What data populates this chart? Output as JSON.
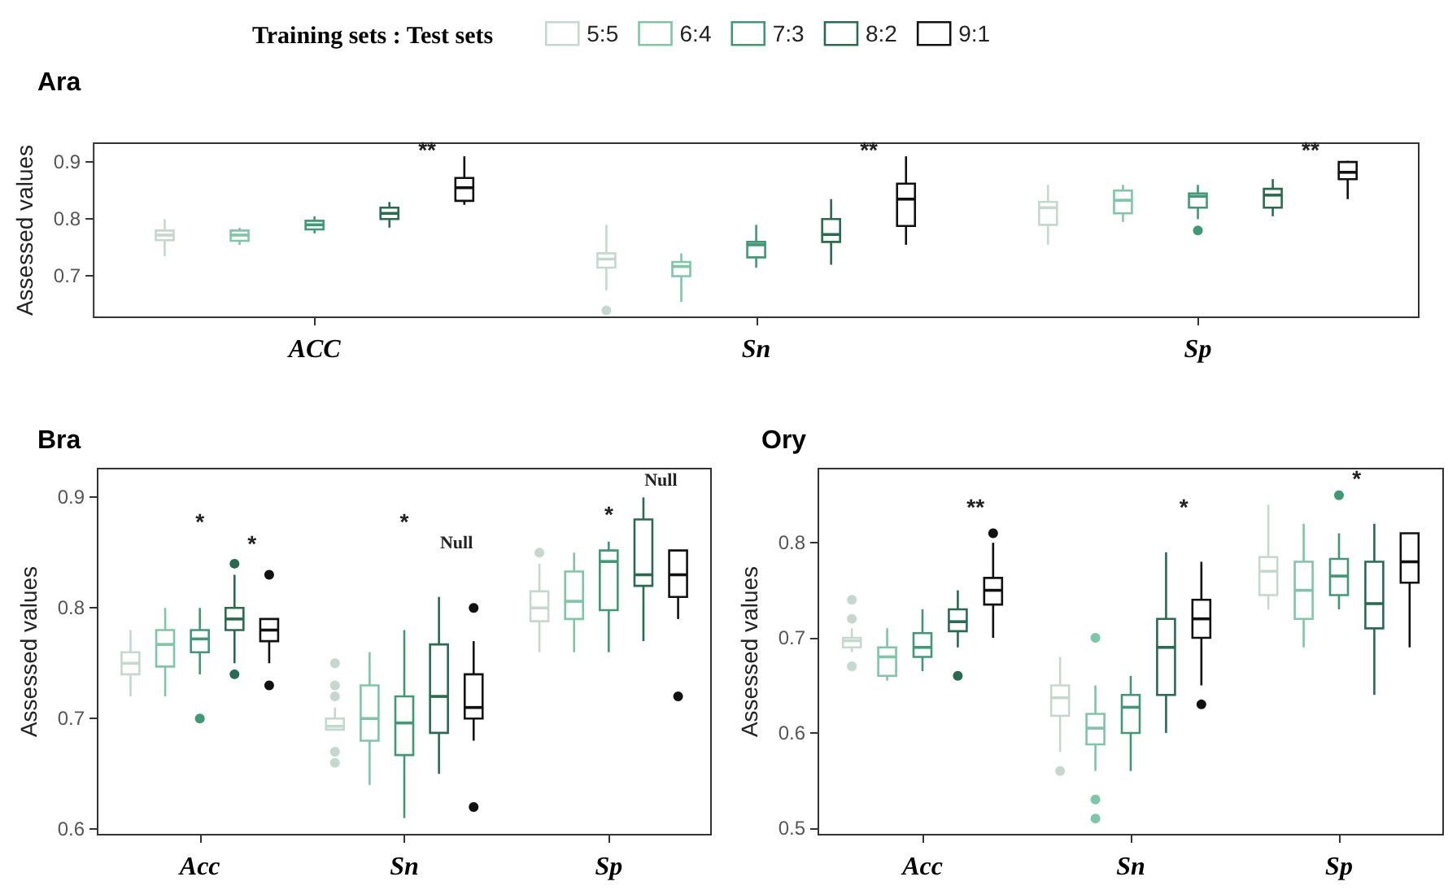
{
  "chart_data": [
    {
      "type": "box",
      "title": "Ara",
      "ylabel": "Assessed values",
      "legend_title": "Training sets : Test sets",
      "legend": "top",
      "categories": [
        "ACC",
        "Sn",
        "Sp"
      ],
      "ylim": [
        0.628,
        0.933
      ],
      "yticks": [
        0.7,
        0.8,
        0.9
      ],
      "annotations": [
        "**",
        "**",
        "**"
      ],
      "series": [
        {
          "name": "5:5",
          "color": "#c3d9cd",
          "boxes": [
            {
              "low": 0.735,
              "q1": 0.763,
              "median": 0.772,
              "q3": 0.78,
              "high": 0.8
            },
            {
              "low": 0.675,
              "q1": 0.715,
              "median": 0.73,
              "q3": 0.74,
              "high": 0.79,
              "outliers": [
                0.64
              ]
            },
            {
              "low": 0.755,
              "q1": 0.79,
              "median": 0.82,
              "q3": 0.83,
              "high": 0.86
            }
          ]
        },
        {
          "name": "6:4",
          "color": "#7cc7a5",
          "boxes": [
            {
              "low": 0.755,
              "q1": 0.762,
              "median": 0.772,
              "q3": 0.78,
              "high": 0.785
            },
            {
              "low": 0.655,
              "q1": 0.7,
              "median": 0.717,
              "q3": 0.725,
              "high": 0.74
            },
            {
              "low": 0.795,
              "q1": 0.81,
              "median": 0.833,
              "q3": 0.85,
              "high": 0.86
            }
          ]
        },
        {
          "name": "7:3",
          "color": "#3d9a74",
          "boxes": [
            {
              "low": 0.775,
              "q1": 0.782,
              "median": 0.79,
              "q3": 0.797,
              "high": 0.805
            },
            {
              "low": 0.715,
              "q1": 0.733,
              "median": 0.755,
              "q3": 0.76,
              "high": 0.79
            },
            {
              "low": 0.8,
              "q1": 0.82,
              "median": 0.84,
              "q3": 0.845,
              "high": 0.86,
              "outliers": [
                0.78
              ]
            }
          ]
        },
        {
          "name": "8:2",
          "color": "#276b51",
          "boxes": [
            {
              "low": 0.785,
              "q1": 0.8,
              "median": 0.81,
              "q3": 0.82,
              "high": 0.83
            },
            {
              "low": 0.72,
              "q1": 0.76,
              "median": 0.773,
              "q3": 0.8,
              "high": 0.835
            },
            {
              "low": 0.805,
              "q1": 0.82,
              "median": 0.842,
              "q3": 0.853,
              "high": 0.87
            }
          ]
        },
        {
          "name": "9:1",
          "color": "#111111",
          "boxes": [
            {
              "low": 0.825,
              "q1": 0.832,
              "median": 0.855,
              "q3": 0.872,
              "high": 0.91
            },
            {
              "low": 0.755,
              "q1": 0.788,
              "median": 0.835,
              "q3": 0.862,
              "high": 0.91
            },
            {
              "low": 0.835,
              "q1": 0.87,
              "median": 0.882,
              "q3": 0.9,
              "high": 0.902
            }
          ]
        }
      ]
    },
    {
      "type": "box",
      "title": "Bra",
      "ylabel": "Assessed values",
      "categories": [
        "Acc",
        "Sn",
        "Sp"
      ],
      "ylim": [
        0.595,
        0.926
      ],
      "yticks": [
        0.6,
        0.7,
        0.8,
        0.9
      ],
      "annotations": [
        "*",
        "*",
        "*",
        "Null",
        "*",
        "Null"
      ],
      "series": [
        {
          "color": "#c3d9cd",
          "boxes": [
            {
              "low": 0.72,
              "q1": 0.74,
              "median": 0.75,
              "q3": 0.76,
              "high": 0.78
            },
            {
              "low": 0.69,
              "q1": 0.69,
              "median": 0.693,
              "q3": 0.7,
              "high": 0.71,
              "outliers": [
                0.75,
                0.73,
                0.72,
                0.67,
                0.66
              ]
            },
            {
              "low": 0.76,
              "q1": 0.788,
              "median": 0.8,
              "q3": 0.815,
              "high": 0.84,
              "outliers": [
                0.85
              ]
            }
          ]
        },
        {
          "color": "#7cc7a5",
          "boxes": [
            {
              "low": 0.72,
              "q1": 0.747,
              "median": 0.767,
              "q3": 0.78,
              "high": 0.8
            },
            {
              "low": 0.64,
              "q1": 0.68,
              "median": 0.7,
              "q3": 0.73,
              "high": 0.76
            },
            {
              "low": 0.76,
              "q1": 0.79,
              "median": 0.806,
              "q3": 0.833,
              "high": 0.85
            }
          ]
        },
        {
          "color": "#3d9a74",
          "boxes": [
            {
              "low": 0.74,
              "q1": 0.76,
              "median": 0.772,
              "q3": 0.78,
              "high": 0.8,
              "outliers": [
                0.7
              ]
            },
            {
              "low": 0.61,
              "q1": 0.667,
              "median": 0.696,
              "q3": 0.72,
              "high": 0.78
            },
            {
              "low": 0.76,
              "q1": 0.798,
              "median": 0.842,
              "q3": 0.852,
              "high": 0.86
            }
          ]
        },
        {
          "color": "#276b51",
          "boxes": [
            {
              "low": 0.75,
              "q1": 0.78,
              "median": 0.79,
              "q3": 0.8,
              "high": 0.83,
              "outliers": [
                0.84,
                0.74
              ]
            },
            {
              "low": 0.65,
              "q1": 0.687,
              "median": 0.72,
              "q3": 0.767,
              "high": 0.81
            },
            {
              "low": 0.77,
              "q1": 0.82,
              "median": 0.83,
              "q3": 0.88,
              "high": 0.9
            }
          ]
        },
        {
          "color": "#111111",
          "boxes": [
            {
              "low": 0.75,
              "q1": 0.77,
              "median": 0.78,
              "q3": 0.79,
              "high": 0.79,
              "outliers": [
                0.83,
                0.73
              ]
            },
            {
              "low": 0.68,
              "q1": 0.7,
              "median": 0.71,
              "q3": 0.74,
              "high": 0.77,
              "outliers": [
                0.8,
                0.62
              ]
            },
            {
              "low": 0.79,
              "q1": 0.81,
              "median": 0.83,
              "q3": 0.852,
              "high": 0.852,
              "outliers": [
                0.72
              ]
            }
          ]
        }
      ]
    },
    {
      "type": "box",
      "title": "Ory",
      "ylabel": "Assessed values",
      "categories": [
        "Acc",
        "Sn",
        "Sp"
      ],
      "ylim": [
        0.493,
        0.878
      ],
      "yticks": [
        0.5,
        0.6,
        0.7,
        0.8
      ],
      "annotations": [
        "**",
        "*",
        "*"
      ],
      "series": [
        {
          "color": "#c3d9cd",
          "boxes": [
            {
              "low": 0.685,
              "q1": 0.69,
              "median": 0.697,
              "q3": 0.7,
              "high": 0.71,
              "outliers": [
                0.74,
                0.72,
                0.67
              ]
            },
            {
              "low": 0.58,
              "q1": 0.618,
              "median": 0.637,
              "q3": 0.65,
              "high": 0.68,
              "outliers": [
                0.56
              ]
            },
            {
              "low": 0.73,
              "q1": 0.745,
              "median": 0.77,
              "q3": 0.785,
              "high": 0.84
            }
          ]
        },
        {
          "color": "#7cc7a5",
          "boxes": [
            {
              "low": 0.655,
              "q1": 0.66,
              "median": 0.68,
              "q3": 0.69,
              "high": 0.71
            },
            {
              "low": 0.56,
              "q1": 0.588,
              "median": 0.605,
              "q3": 0.62,
              "high": 0.65,
              "outliers": [
                0.7,
                0.53,
                0.51
              ]
            },
            {
              "low": 0.69,
              "q1": 0.72,
              "median": 0.75,
              "q3": 0.78,
              "high": 0.82
            }
          ]
        },
        {
          "color": "#3d9a74",
          "boxes": [
            {
              "low": 0.665,
              "q1": 0.68,
              "median": 0.69,
              "q3": 0.705,
              "high": 0.73
            },
            {
              "low": 0.56,
              "q1": 0.6,
              "median": 0.627,
              "q3": 0.64,
              "high": 0.66
            },
            {
              "low": 0.73,
              "q1": 0.745,
              "median": 0.765,
              "q3": 0.783,
              "high": 0.81,
              "outliers": [
                0.85
              ]
            }
          ]
        },
        {
          "color": "#276b51",
          "boxes": [
            {
              "low": 0.69,
              "q1": 0.707,
              "median": 0.717,
              "q3": 0.73,
              "high": 0.75,
              "outliers": [
                0.66
              ]
            },
            {
              "low": 0.6,
              "q1": 0.64,
              "median": 0.69,
              "q3": 0.72,
              "high": 0.79
            },
            {
              "low": 0.64,
              "q1": 0.71,
              "median": 0.736,
              "q3": 0.78,
              "high": 0.82
            }
          ]
        },
        {
          "color": "#111111",
          "boxes": [
            {
              "low": 0.7,
              "q1": 0.735,
              "median": 0.75,
              "q3": 0.763,
              "high": 0.8,
              "outliers": [
                0.81
              ]
            },
            {
              "low": 0.65,
              "q1": 0.7,
              "median": 0.72,
              "q3": 0.74,
              "high": 0.78,
              "outliers": [
                0.63
              ]
            },
            {
              "low": 0.69,
              "q1": 0.758,
              "median": 0.78,
              "q3": 0.81,
              "high": 0.81
            }
          ]
        }
      ]
    }
  ]
}
